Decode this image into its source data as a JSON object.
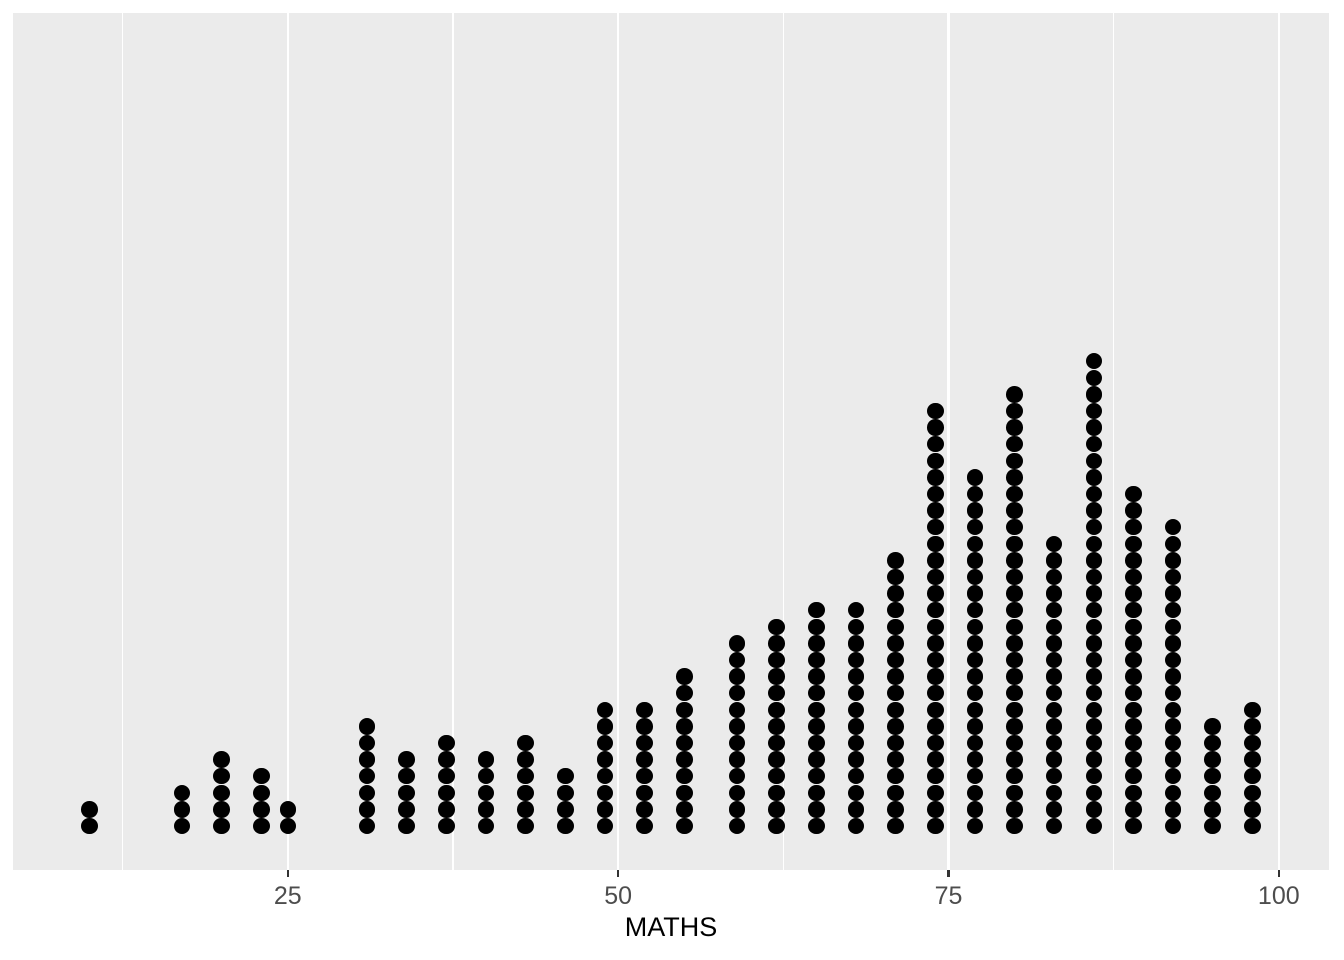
{
  "chart_data": {
    "type": "scatter",
    "subtype": "stacked_dotplot",
    "description": "ggplot2-style dot plot; each black dot is one observation stacked vertically per MATHS score bin",
    "title": "",
    "xlabel": "MATHS",
    "ylabel": "",
    "legend": "none",
    "grid": "vertical white gridlines only, on gray panel",
    "x_axis": {
      "ticks": [
        25,
        50,
        75,
        100
      ],
      "tick_labels": [
        "25",
        "50",
        "75",
        "100"
      ],
      "minor_gridlines": [
        12.5,
        37.5,
        62.5,
        87.5
      ],
      "range": [
        4.2,
        103.8
      ]
    },
    "x_values": [
      10,
      17,
      20,
      23,
      25,
      31,
      34,
      37,
      40,
      43,
      46,
      49,
      52,
      55,
      59,
      62,
      65,
      68,
      71,
      74,
      77,
      80,
      83,
      86,
      89,
      92,
      95,
      98
    ],
    "counts": [
      2,
      3,
      5,
      4,
      2,
      7,
      5,
      6,
      5,
      6,
      4,
      8,
      8,
      10,
      12,
      13,
      14,
      14,
      17,
      26,
      22,
      27,
      18,
      29,
      21,
      19,
      7,
      8
    ],
    "total_observations": 322,
    "colors": {
      "dot": "#000000",
      "panel_background": "#EBEBEB",
      "gridline": "#FFFFFF",
      "tick_mark": "#333333",
      "tick_label": "#4D4D4D",
      "axis_title": "#000000",
      "figure_background": "#FFFFFF"
    }
  }
}
